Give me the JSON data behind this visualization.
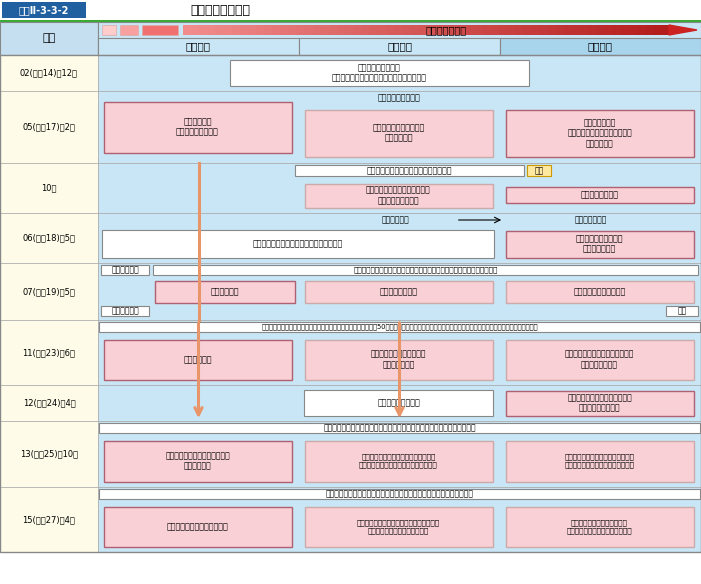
{
  "title_box": "図表Ⅱ-3-3-2",
  "title_text": "日米協議の全体像",
  "stage_label": "日米協議の段階",
  "col0_label": "協議",
  "stage1": "第一段階",
  "stage2": "第二段階",
  "stage3": "第三段階",
  "r0_label": "02(平成14)年12月",
  "r1_label": "05(平成17)年2月",
  "r2_label": "10月",
  "r3_label": "06(平成18)年5月",
  "r4_label": "07(平成19)年5月",
  "r5_label": "11(平成23)年6月",
  "r6_label": "12(平成24)年4月",
  "r7_label": "13(平成25)年10月",
  "r8_label": "15(平成27)年4月",
  "r0_box1": "「２＋２」共同発表\n安全保障全般に関する日米協議の強化を確認",
  "r1_box1": "共通戦略目標\n（第１段階）を確認",
  "r1_hdr2": "「２＋２」共同発表",
  "r1_box2": "日米の役割・任務・能力\n（第２段階）",
  "r1_box3": "兵力態勢の再編\n（在日米軍の兵力構成見直し）\n（第３段階）",
  "r2_hdr": "「日米同盟：未来のための変革と再編」",
  "r2_kentou": "検討",
  "r2_box2": "役割・任務・能力（第２段階）\nの検討のとりまとめ",
  "r2_box3": "再編に関する勧告",
  "r3_inhibit": "抑止力の維持",
  "r3_burden": "地元負担の軽減",
  "r3_box12": "「再編の実施のための日米ロードマップ」",
  "r3_box3": "再編案（第３段階）の\n最終取りまとめ",
  "r4_reconf": "再確認・更新",
  "r4_banner": "「２＋２」共同発表「同盟の変革：日米の安全保障及び防衛協力の進展」",
  "r4_box1": "共通戦略目標",
  "r4_box2": "役割・任務・能力",
  "r4_box3": "再編ロードマップの実施",
  "r4_hokan": "補完",
  "r5_banner": "「２＋２」共同発表「より深化し、拡大する日米同盟に向けて：50年間のパートナーシップの基盤の上に」　「２＋２」文書「在日米軍の再編の進展」",
  "r5_box1": "共通戦略目標",
  "r5_box2": "日米同盟の安全保障および\n防衛協力の強化",
  "r5_box3": "再編ロードマップの目的の実現に\n向けた進展を継続",
  "r6_box2": "「２＋２」共同発表",
  "r6_box3": "ロードマップに示された計画を\n調整することを決定",
  "r7_banner": "「２＋２」共同発表「より力強い同盟とより大きな責任の共有に向けて」",
  "r7_box1": "日米同盟の戦略的な構想および\n地域情勢認識",
  "r7_box2": "「指针」の見直し指示をはじめとする\n二国間の安全保障および防衛協力の強化",
  "r7_box3": "沖縄の負担軽減を含む米軍再編措置\n在日米軍の再編に関する進展を歓迎",
  "r8_banner": "「２＋２」共同発表「変化する安全保障環境のためのより力強い同盟」",
  "r8_box1": "同盟コミットメントの再確認",
  "r8_box2": "新「指针」の発表をはじめとする二国間の\n安全保障および防衛協力の強化",
  "r8_box3": "在日米軍再編に関する日米の\n継続的なコミットメントを再確認",
  "light_blue": "#c8e6f5",
  "mid_blue": "#a8d4ec",
  "yellow": "#fefce8",
  "pink": "#f8d0d5",
  "pink_dark_border": "#b06070",
  "pink_light_border": "#ccaaaa",
  "orange": "#e8956a",
  "white": "#ffffff",
  "label_blue": "#c5dff0",
  "title_bg": "#2060a0",
  "green": "#3aaa35"
}
